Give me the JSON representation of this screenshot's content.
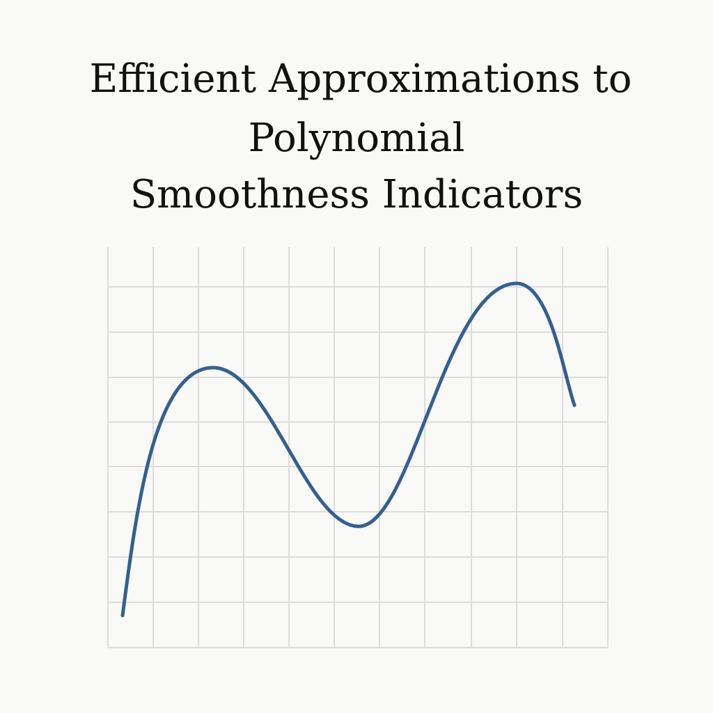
{
  "title": {
    "lines": [
      "Efficient Approximations to",
      "Polynomial",
      "Smoothness Indicators"
    ]
  }
}
